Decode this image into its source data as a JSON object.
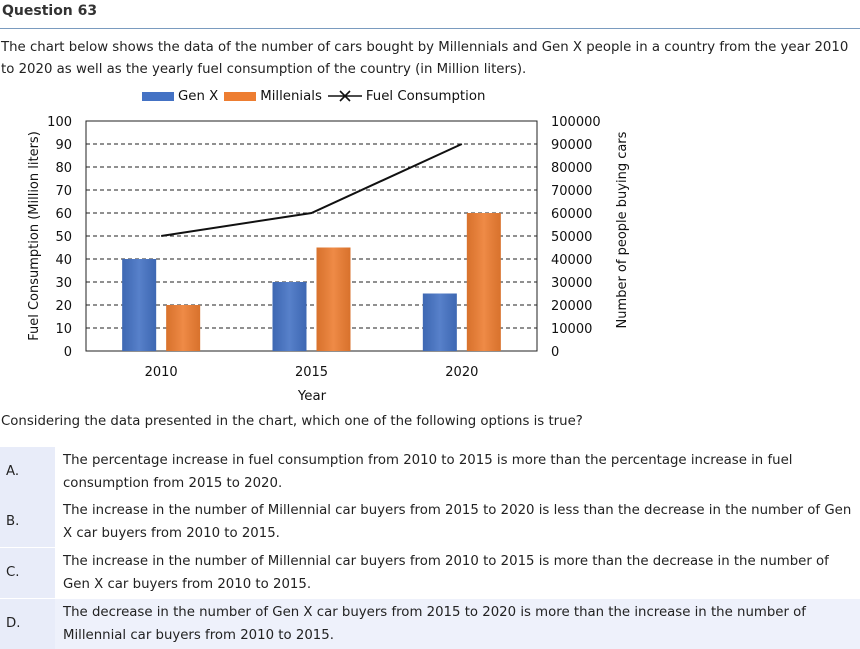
{
  "question": {
    "title": "Question 63",
    "intro": "The chart below shows the data of the number of cars bought by Millennials and Gen X people in a country from the year 2010 to 2020 as well as the yearly fuel consumption of the country (in Million liters).",
    "prompt": "Considering the data presented in the chart, which one of the following options is true?"
  },
  "chart_data": {
    "type": "bar",
    "categories": [
      "2010",
      "2015",
      "2020"
    ],
    "series": [
      {
        "name": "Gen X",
        "type": "bar",
        "axis": "right",
        "color": "#4472c4",
        "values": [
          40000,
          30000,
          25000
        ]
      },
      {
        "name": "Millenials",
        "type": "bar",
        "axis": "right",
        "color": "#ed7d31",
        "values": [
          20000,
          45000,
          60000
        ]
      },
      {
        "name": "Fuel Consumption",
        "type": "line",
        "axis": "left",
        "color": "#111111",
        "marker": "x",
        "values": [
          50,
          60,
          90
        ]
      }
    ],
    "xlabel": "Year",
    "ylabel": "Fuel Consumption (Million liters)",
    "y2label": "Number of people buying cars",
    "ylim": [
      0,
      100
    ],
    "y2lim": [
      0,
      100000
    ],
    "yticks": [
      "0",
      "10",
      "20",
      "30",
      "40",
      "50",
      "60",
      "70",
      "80",
      "90",
      "100"
    ],
    "y2ticks": [
      "0",
      "10000",
      "20000",
      "30000",
      "40000",
      "50000",
      "60000",
      "70000",
      "80000",
      "90000",
      "100000"
    ],
    "grid": true,
    "legend": "top"
  },
  "options": [
    {
      "label": "A.",
      "text": "The percentage increase in fuel consumption from 2010 to 2015 is more than the percentage increase in fuel consumption from 2015 to 2020."
    },
    {
      "label": "B.",
      "text": "The increase in the number of Millennial car buyers from 2015 to 2020 is less than the decrease in the number of Gen X car buyers from 2010 to 2015."
    },
    {
      "label": "C.",
      "text": "The increase in the number of Millennial car buyers from 2010 to 2015 is more than the decrease in the number of Gen X car buyers from 2010 to 2015."
    },
    {
      "label": "D.",
      "text": "The decrease in the number of Gen X car buyers from 2015 to 2020 is more than the increase in the number of Millennial car buyers from 2010 to 2015."
    }
  ]
}
